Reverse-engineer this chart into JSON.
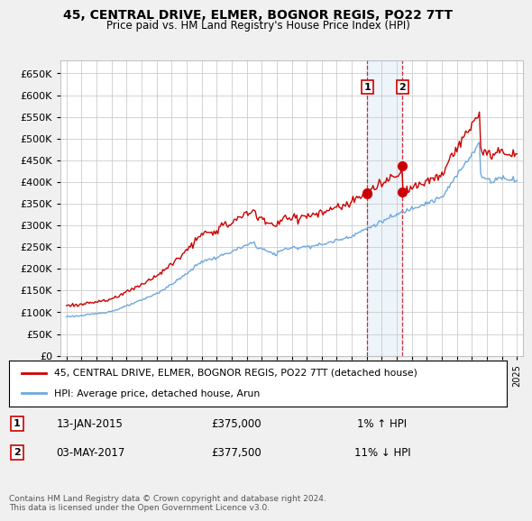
{
  "title": "45, CENTRAL DRIVE, ELMER, BOGNOR REGIS, PO22 7TT",
  "subtitle": "Price paid vs. HM Land Registry's House Price Index (HPI)",
  "legend_line1": "45, CENTRAL DRIVE, ELMER, BOGNOR REGIS, PO22 7TT (detached house)",
  "legend_line2": "HPI: Average price, detached house, Arun",
  "annotation1": {
    "num": "1",
    "date": "13-JAN-2015",
    "price": "£375,000",
    "pct": "1% ↑ HPI"
  },
  "annotation2": {
    "num": "2",
    "date": "03-MAY-2017",
    "price": "£377,500",
    "pct": "11% ↓ HPI"
  },
  "footnote": "Contains HM Land Registry data © Crown copyright and database right 2024.\nThis data is licensed under the Open Government Licence v3.0.",
  "hpi_color": "#6fa8dc",
  "price_color": "#cc0000",
  "marker_color": "#cc0000",
  "ylim": [
    0,
    680000
  ],
  "yticks": [
    0,
    50000,
    100000,
    150000,
    200000,
    250000,
    300000,
    350000,
    400000,
    450000,
    500000,
    550000,
    600000,
    650000
  ],
  "background_color": "#f0f0f0",
  "plot_bg": "#ffffff",
  "sale1_t": 2015.04,
  "sale2_t": 2017.37,
  "sale1_price": 375000,
  "sale2_price": 377500,
  "vline1_x": 2015.04,
  "vline2_x": 2017.37,
  "xlim_left": 1994.6,
  "xlim_right": 2025.4
}
